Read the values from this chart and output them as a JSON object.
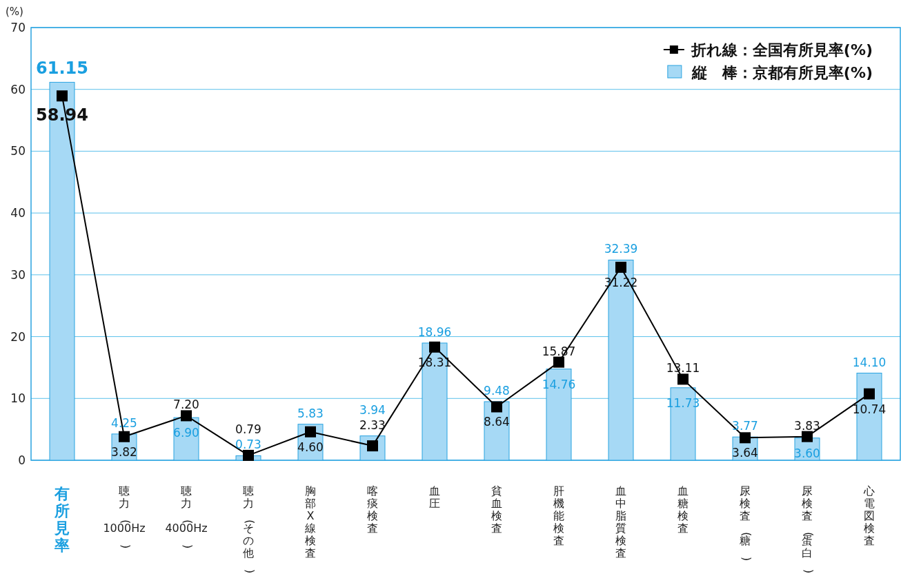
{
  "chart_data": {
    "type": "bar",
    "ylabel": "(%)",
    "categories": [
      "有所見率",
      "聴力(1000Hz)",
      "聴力(4000Hz)",
      "聴力(その他)",
      "胸部X線検査",
      "喀痰検査",
      "血圧",
      "貧血検査",
      "肝機能検査",
      "血中脂質検査",
      "血糖検査",
      "尿検査(糖)",
      "尿検査(蛋白)",
      "心電図検査"
    ],
    "series": [
      {
        "name": "折れ線：全国有所見率(%)",
        "type": "line",
        "color": "#000000",
        "values": [
          58.94,
          3.82,
          7.2,
          0.79,
          4.6,
          2.33,
          18.31,
          8.64,
          15.87,
          31.22,
          13.11,
          3.64,
          3.83,
          10.74
        ],
        "value_labels": [
          "58.94",
          "3.82",
          "7.20",
          "0.79",
          "4.60",
          "2.33",
          "18.31",
          "8.64",
          "15.87",
          "31.22",
          "13.11",
          "3.64",
          "3.83",
          "10.74"
        ]
      },
      {
        "name": "縦　棒：京都有所見率(%)",
        "color": "#a6d9f5",
        "values": [
          61.15,
          4.25,
          6.9,
          0.73,
          5.83,
          3.94,
          18.96,
          9.48,
          14.76,
          32.39,
          11.73,
          3.77,
          3.6,
          14.1
        ],
        "value_labels": [
          "61.15",
          "4.25",
          "6.90",
          "0.73",
          "5.83",
          "3.94",
          "18.96",
          "9.48",
          "14.76",
          "32.39",
          "11.73",
          "3.77",
          "3.60",
          "14.10"
        ]
      }
    ],
    "ylim": [
      0,
      70
    ],
    "yticks": [
      0,
      10,
      20,
      30,
      40,
      50,
      60,
      70
    ],
    "grid": "y",
    "legend": "top right",
    "marker": "square"
  }
}
